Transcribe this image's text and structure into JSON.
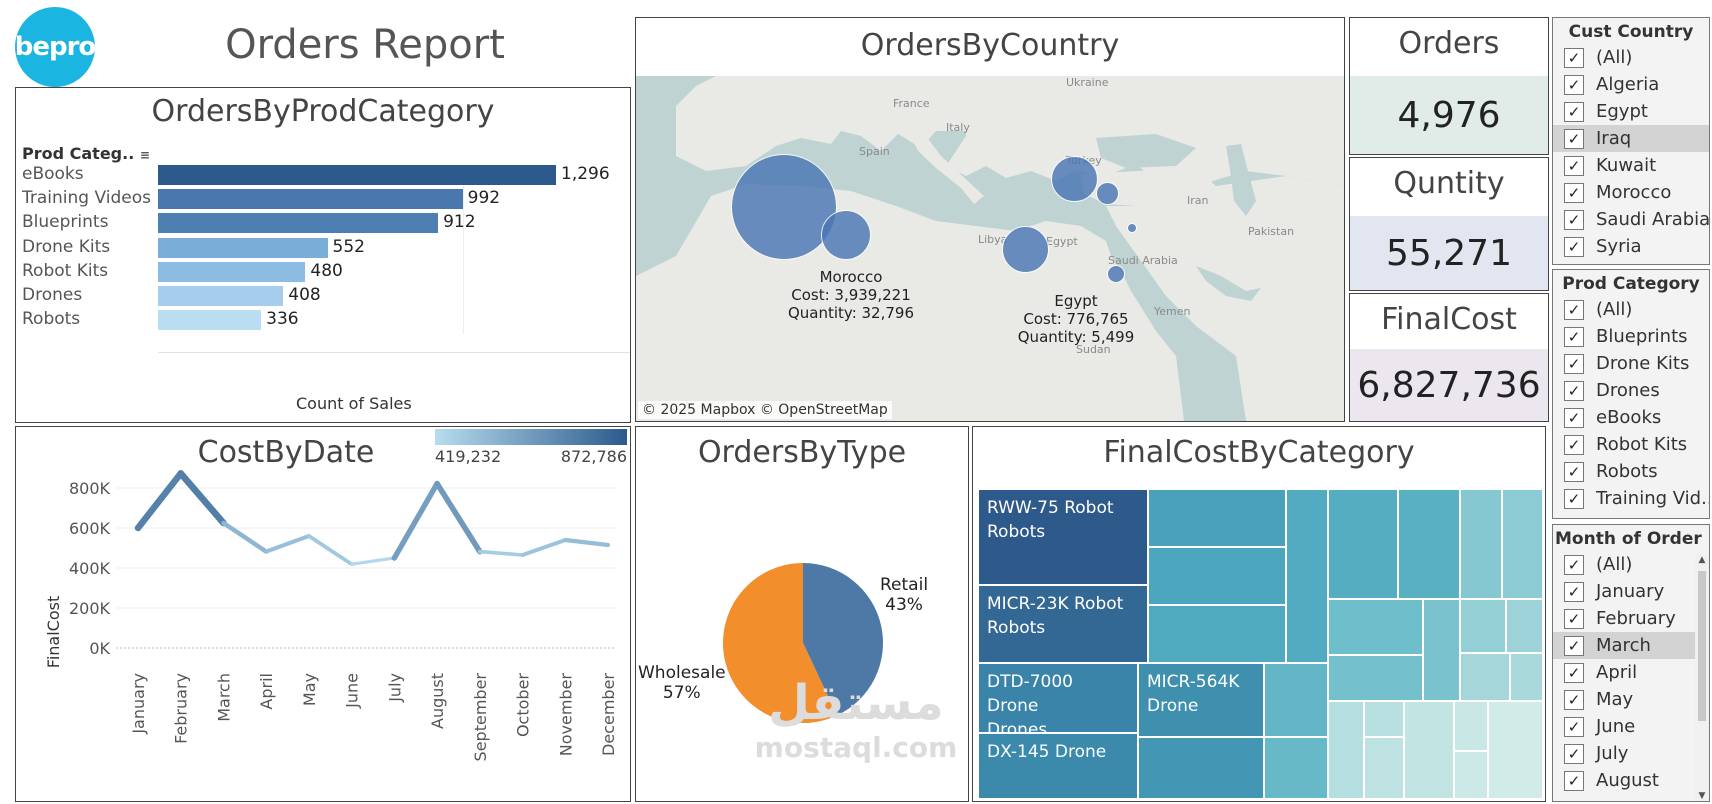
{
  "header": {
    "logo_text": "bepro",
    "title": "Orders Report"
  },
  "colors": {
    "bar_dark": "#2c5a8c",
    "bar_light": "#b7dcef",
    "pie_retail": "#4e79a7",
    "pie_wholesale": "#f28e2b",
    "map_land": "#e9e9e6",
    "map_water": "#bfd3d3",
    "bubble": "#4a77b4"
  },
  "prod_category": {
    "title": "OrdersByProdCategory",
    "column_header": "Prod Categ..",
    "xlabel": "Count of Sales",
    "chart_data": {
      "type": "bar",
      "orientation": "horizontal",
      "categories": [
        "eBooks",
        "Training Videos",
        "Blueprints",
        "Drone Kits",
        "Robot Kits",
        "Drones",
        "Robots"
      ],
      "values": [
        1296,
        992,
        912,
        552,
        480,
        408,
        336
      ],
      "value_labels": [
        "1,296",
        "992",
        "912",
        "552",
        "480",
        "408",
        "336"
      ],
      "bar_colors": [
        "#2c5a8c",
        "#4a77ad",
        "#4d7fb3",
        "#7aaed9",
        "#8cbce2",
        "#a6cdeb",
        "#b9ddf1"
      ],
      "xmax": 1296
    }
  },
  "map": {
    "title": "OrdersByCountry",
    "attribution": "© 2025 Mapbox © OpenStreetMap",
    "place_labels": [
      "Ukraine",
      "France",
      "Italy",
      "Spain",
      "Turkey",
      "Iran",
      "Libya",
      "Egypt",
      "Saudi Arabia",
      "Pakistan",
      "Yemen",
      "Sudan"
    ],
    "annotations": [
      {
        "country": "Morocco",
        "cost": "Cost: 3,939,221",
        "quantity": "Quantity: 32,796"
      },
      {
        "country": "Egypt",
        "cost": "Cost: 776,765",
        "quantity": "Quantity: 5,499"
      }
    ],
    "chart_data": {
      "type": "bubble-map",
      "points": [
        {
          "country": "Morocco",
          "cost": 3939221,
          "quantity": 32796,
          "lon": -6.8,
          "lat": 31.8
        },
        {
          "country": "Algeria",
          "cost": 900000,
          "lon": 2.8,
          "lat": 28.5
        },
        {
          "country": "Egypt",
          "cost": 776765,
          "quantity": 5499,
          "lon": 30.8,
          "lat": 26.8
        },
        {
          "country": "Syria",
          "cost": 750000,
          "lon": 38.5,
          "lat": 35.0
        },
        {
          "country": "Iraq",
          "cost": 180000,
          "lon": 43.7,
          "lat": 33.3
        },
        {
          "country": "Saudi Arabia",
          "cost": 120000,
          "lon": 45.0,
          "lat": 24.0
        },
        {
          "country": "Kuwait",
          "cost": 20000,
          "lon": 47.5,
          "lat": 29.3
        }
      ]
    }
  },
  "kpis": [
    {
      "title": "Orders",
      "value": "4,976",
      "color": "#e1ece9"
    },
    {
      "title": "Quntity",
      "value": "55,271",
      "color": "#e1e6f0"
    },
    {
      "title": "FinalCost",
      "value": "6,827,736",
      "color": "#ece6ef"
    }
  ],
  "filters": {
    "country": {
      "title": "Cust Country",
      "items": [
        "(All)",
        "Algeria",
        "Egypt",
        "Iraq",
        "Kuwait",
        "Morocco",
        "Saudi Arabia",
        "Syria"
      ],
      "selected": "Iraq"
    },
    "category": {
      "title": "Prod Category",
      "items": [
        "(All)",
        "Blueprints",
        "Drone Kits",
        "Drones",
        "eBooks",
        "Robot Kits",
        "Robots",
        "Training Vid..."
      ]
    },
    "month": {
      "title": "Month of Order D..",
      "items": [
        "(All)",
        "January",
        "February",
        "March",
        "April",
        "May",
        "June",
        "July",
        "August"
      ],
      "selected": "March"
    }
  },
  "cost_by_date": {
    "title": "CostByDate",
    "legend_min": "419,232",
    "legend_max": "872,786",
    "chart_data": {
      "type": "line",
      "title": "CostByDate",
      "ylabel": "FinalCost",
      "ylim": [
        0,
        900000
      ],
      "yticks": [
        0,
        200000,
        400000,
        600000,
        800000
      ],
      "ytick_labels": [
        "0K",
        "200K",
        "400K",
        "600K",
        "800K"
      ],
      "x": [
        "January",
        "February",
        "March",
        "April",
        "May",
        "June",
        "July",
        "August",
        "September",
        "October",
        "November",
        "December"
      ],
      "values": [
        600000,
        872786,
        625000,
        482000,
        560000,
        419232,
        450000,
        822000,
        482000,
        465000,
        540000,
        515000
      ]
    }
  },
  "orders_by_type": {
    "title": "OrdersByType",
    "chart_data": {
      "type": "pie",
      "labels": [
        "Retail",
        "Wholesale"
      ],
      "values": [
        43,
        57
      ],
      "value_labels": [
        "43%",
        "57%"
      ]
    }
  },
  "final_cost": {
    "title": "FinalCostByCategory",
    "chart_data": {
      "type": "treemap",
      "labeled_items": [
        {
          "line1": "RWW-75 Robot",
          "line2": "Robots"
        },
        {
          "line1": "MICR-23K Robot",
          "line2": "Robots"
        },
        {
          "line1": "DTD-7000 Drone",
          "line2": "Drones"
        },
        {
          "line1": "MICR-564K",
          "line2": "Drone"
        },
        {
          "line1": "DX-145 Drone",
          "line2": ""
        }
      ]
    }
  },
  "watermark": {
    "brand_ar": "مستقل",
    "brand_en": "mostaql.com"
  }
}
